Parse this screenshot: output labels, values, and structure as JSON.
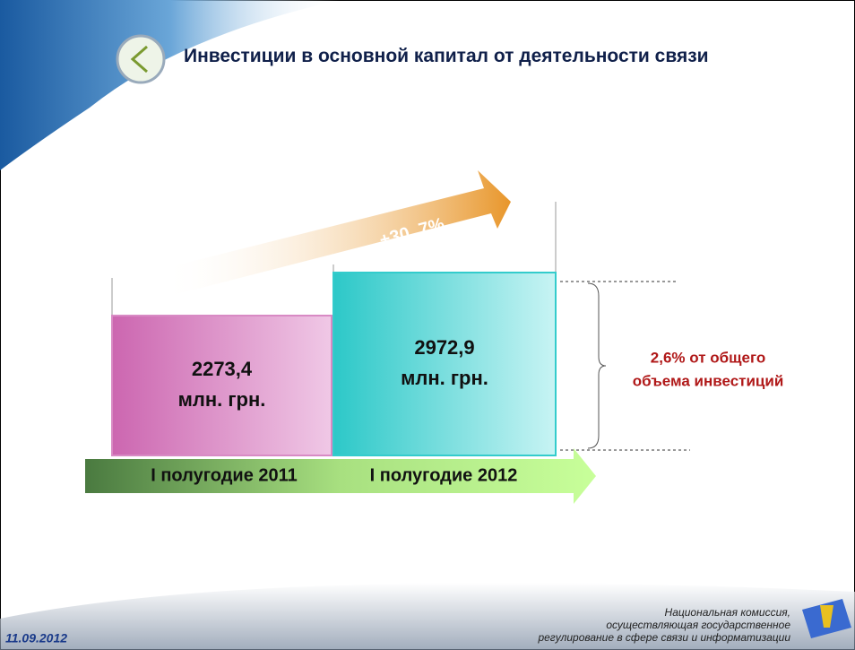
{
  "chart_data": {
    "type": "bar",
    "title": "Инвестиции в основной капитал от деятельности связи",
    "categories": [
      "I полугодие 2011",
      "I полугодие 2012"
    ],
    "values": [
      2273.4,
      2972.9
    ],
    "value_labels": [
      "2273,4",
      "2972,9"
    ],
    "unit": "млн. грн.",
    "colors": [
      "#d88ac4",
      "#33cccc"
    ],
    "growth_label": "+30, 7%",
    "annotation": [
      "2,6% от общего",
      "объема инвестиций"
    ]
  },
  "footer": {
    "date": "11.09.2012",
    "organization": [
      "Национальная комиссия,",
      "осуществляющая государственное",
      "регулирование в сфере связи и информатизации"
    ]
  }
}
